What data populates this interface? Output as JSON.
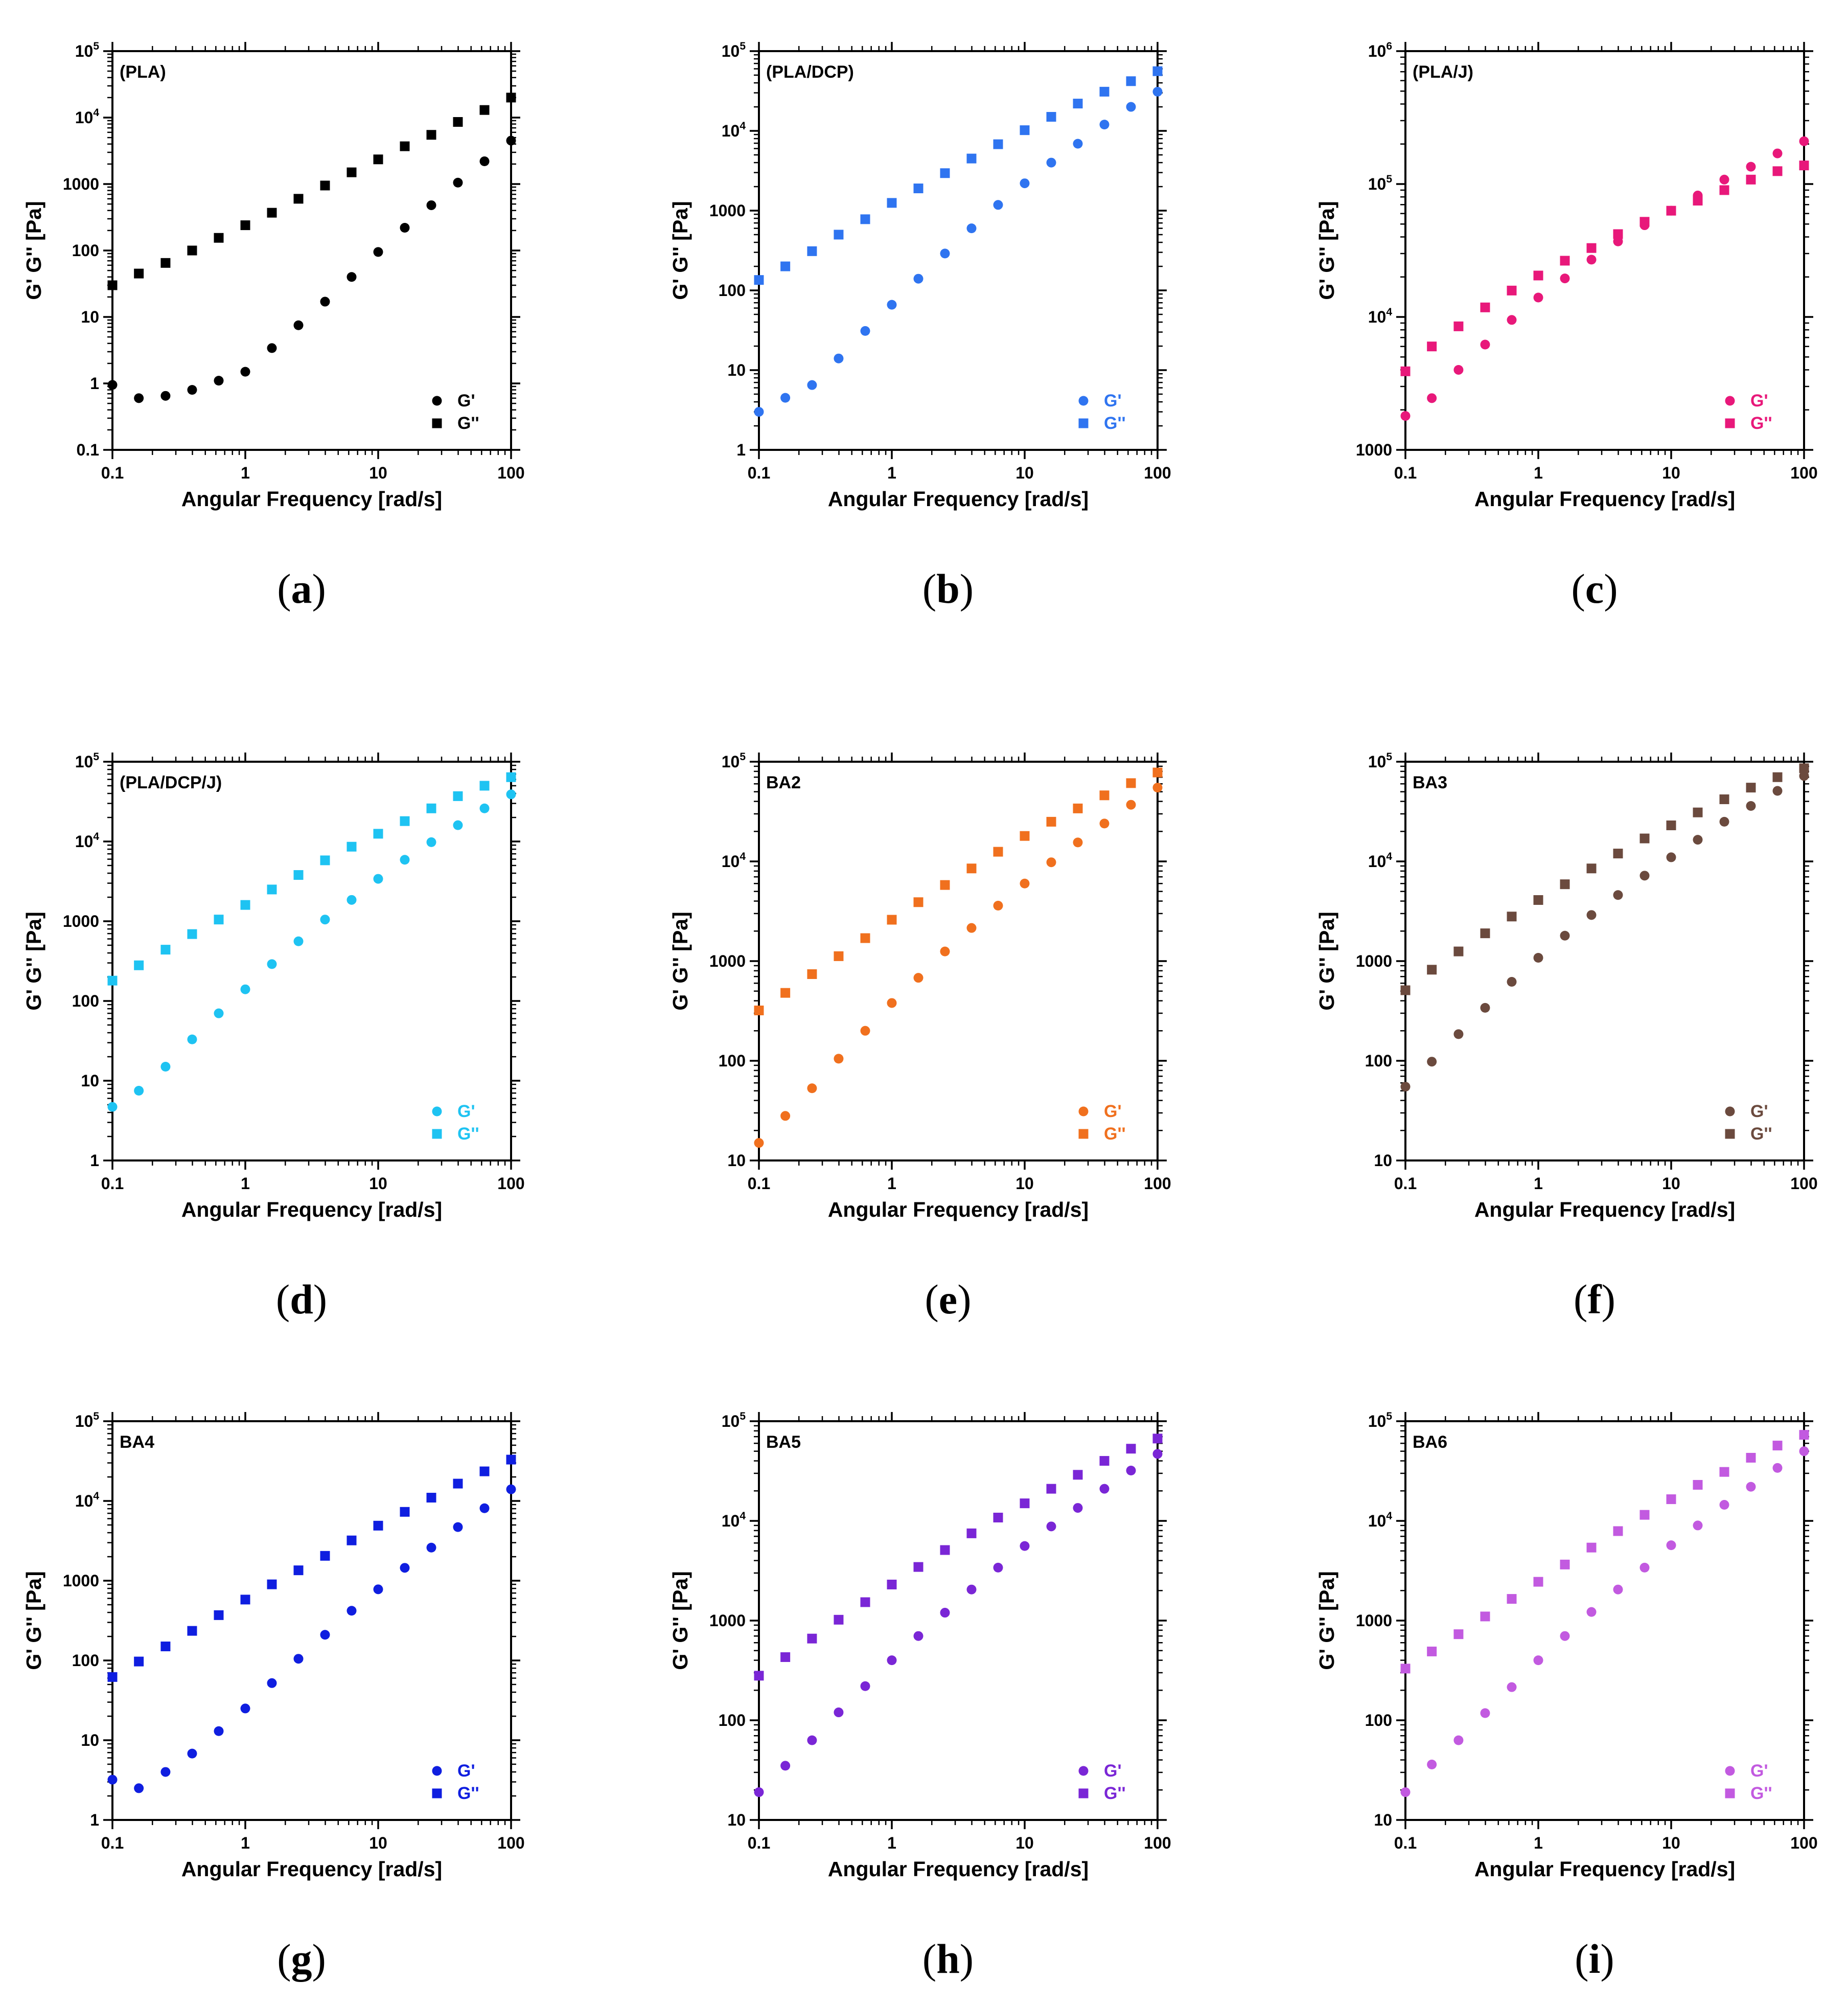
{
  "chart_data": [
    {
      "type": "scatter",
      "panel": "a",
      "caption": "a",
      "title": "(PLA)",
      "xlabel": "Angular Frequency [rad/s]",
      "ylabel": "G' G'' [Pa]",
      "xscale": "log",
      "yscale": "log",
      "xlim": [
        0.1,
        100
      ],
      "ylim": [
        0.1,
        100000
      ],
      "xticks": [
        "0.1",
        "1",
        "10",
        "100"
      ],
      "yticks": [
        "0.1",
        "1",
        "10",
        "100",
        "1000",
        "10^4",
        "10^5"
      ],
      "color": "#000000",
      "legend": [
        "G'",
        "G''"
      ],
      "legend_position": "bottom-right",
      "x": [
        0.1,
        0.158,
        0.251,
        0.398,
        0.631,
        1,
        1.585,
        2.512,
        3.981,
        6.31,
        10,
        15.85,
        25.12,
        39.81,
        63.1,
        100
      ],
      "series": [
        {
          "name": "G'",
          "marker": "circle",
          "values": [
            0.95,
            0.6,
            0.65,
            0.8,
            1.1,
            1.5,
            3.4,
            7.5,
            17,
            40,
            95,
            220,
            480,
            1050,
            2200,
            4500
          ]
        },
        {
          "name": "G''",
          "marker": "square",
          "values": [
            30,
            45,
            65,
            100,
            155,
            240,
            370,
            600,
            950,
            1500,
            2350,
            3700,
            5500,
            8600,
            13000,
            20000
          ]
        }
      ]
    },
    {
      "type": "scatter",
      "panel": "b",
      "caption": "b",
      "title": "(PLA/DCP)",
      "xlabel": "Angular Frequency [rad/s]",
      "ylabel": "G' G'' [Pa]",
      "xscale": "log",
      "yscale": "log",
      "xlim": [
        0.1,
        100
      ],
      "ylim": [
        1,
        100000
      ],
      "xticks": [
        "0.1",
        "1",
        "10",
        "100"
      ],
      "yticks": [
        "1",
        "10",
        "100",
        "1000",
        "10^4",
        "10^5"
      ],
      "color": "#2f74f0",
      "legend": [
        "G'",
        "G''"
      ],
      "legend_position": "bottom-right",
      "x": [
        0.1,
        0.158,
        0.251,
        0.398,
        0.631,
        1,
        1.585,
        2.512,
        3.981,
        6.31,
        10,
        15.85,
        25.12,
        39.81,
        63.1,
        100
      ],
      "series": [
        {
          "name": "G'",
          "marker": "circle",
          "values": [
            3,
            4.5,
            6.5,
            14,
            31,
            66,
            140,
            290,
            600,
            1180,
            2200,
            4000,
            6900,
            12000,
            20000,
            31000
          ]
        },
        {
          "name": "G''",
          "marker": "square",
          "values": [
            135,
            200,
            310,
            500,
            780,
            1250,
            1900,
            2950,
            4500,
            6800,
            10200,
            15000,
            22000,
            31000,
            42000,
            56000
          ]
        }
      ]
    },
    {
      "type": "scatter",
      "panel": "c",
      "caption": "c",
      "title": "(PLA/J)",
      "xlabel": "Angular Frequency [rad/s]",
      "ylabel": "G' G'' [Pa]",
      "xscale": "log",
      "yscale": "log",
      "xlim": [
        0.1,
        100
      ],
      "ylim": [
        1000,
        1000000
      ],
      "xticks": [
        "0.1",
        "1",
        "10",
        "100"
      ],
      "yticks": [
        "1000",
        "10^4",
        "10^5",
        "10^6"
      ],
      "color": "#e8187a",
      "legend": [
        "G'",
        "G''"
      ],
      "legend_position": "bottom-right",
      "x": [
        0.1,
        0.158,
        0.251,
        0.398,
        0.631,
        1,
        1.585,
        2.512,
        3.981,
        6.31,
        10,
        15.85,
        25.12,
        39.81,
        63.1,
        100
      ],
      "series": [
        {
          "name": "G'",
          "marker": "circle",
          "values": [
            1800,
            2450,
            4000,
            6200,
            9500,
            14000,
            19500,
            27000,
            37000,
            49000,
            63000,
            82000,
            108000,
            135000,
            170000,
            210000
          ]
        },
        {
          "name": "G''",
          "marker": "square",
          "values": [
            3900,
            6000,
            8500,
            11800,
            15800,
            20500,
            26500,
            33000,
            42000,
            52000,
            63000,
            75000,
            90000,
            108000,
            125000,
            138000
          ]
        }
      ]
    },
    {
      "type": "scatter",
      "panel": "d",
      "caption": "d",
      "title": "(PLA/DCP/J)",
      "xlabel": "Angular Frequency [rad/s]",
      "ylabel": "G' G'' [Pa]",
      "xscale": "log",
      "yscale": "log",
      "xlim": [
        0.1,
        100
      ],
      "ylim": [
        1,
        100000
      ],
      "xticks": [
        "0.1",
        "1",
        "10",
        "100"
      ],
      "yticks": [
        "1",
        "10",
        "100",
        "1000",
        "10^4",
        "10^5"
      ],
      "color": "#1ec3f2",
      "legend": [
        "G'",
        "G''"
      ],
      "legend_position": "bottom-right",
      "x": [
        0.1,
        0.158,
        0.251,
        0.398,
        0.631,
        1,
        1.585,
        2.512,
        3.981,
        6.31,
        10,
        15.85,
        25.12,
        39.81,
        63.1,
        100
      ],
      "series": [
        {
          "name": "G'",
          "marker": "circle",
          "values": [
            4.7,
            7.5,
            15,
            33,
            70,
            140,
            290,
            560,
            1050,
            1850,
            3400,
            5900,
            9800,
            16000,
            26000,
            39000
          ]
        },
        {
          "name": "G''",
          "marker": "square",
          "values": [
            180,
            280,
            440,
            690,
            1050,
            1600,
            2500,
            3800,
            5800,
            8600,
            12500,
            18000,
            26000,
            37000,
            50000,
            64000
          ]
        }
      ]
    },
    {
      "type": "scatter",
      "panel": "e",
      "caption": "e",
      "title": "BA2",
      "xlabel": "Angular Frequency [rad/s]",
      "ylabel": "G' G'' [Pa]",
      "xscale": "log",
      "yscale": "log",
      "xlim": [
        0.1,
        100
      ],
      "ylim": [
        10,
        100000
      ],
      "xticks": [
        "0.1",
        "1",
        "10",
        "100"
      ],
      "yticks": [
        "10",
        "100",
        "1000",
        "10^4",
        "10^5"
      ],
      "color": "#f0701e",
      "legend": [
        "G'",
        "G''"
      ],
      "legend_position": "bottom-right",
      "x": [
        0.1,
        0.158,
        0.251,
        0.398,
        0.631,
        1,
        1.585,
        2.512,
        3.981,
        6.31,
        10,
        15.85,
        25.12,
        39.81,
        63.1,
        100
      ],
      "series": [
        {
          "name": "G'",
          "marker": "circle",
          "values": [
            15,
            28,
            53,
            105,
            200,
            380,
            680,
            1250,
            2150,
            3600,
            6000,
            9800,
            15500,
            24000,
            37000,
            55000
          ]
        },
        {
          "name": "G''",
          "marker": "square",
          "values": [
            320,
            480,
            740,
            1120,
            1700,
            2600,
            3900,
            5800,
            8500,
            12500,
            18000,
            25000,
            34000,
            46000,
            61000,
            78000
          ]
        }
      ]
    },
    {
      "type": "scatter",
      "panel": "f",
      "caption": "f",
      "title": "BA3",
      "xlabel": "Angular Frequency [rad/s]",
      "ylabel": "G' G'' [Pa]",
      "xscale": "log",
      "yscale": "log",
      "xlim": [
        0.1,
        100
      ],
      "ylim": [
        10,
        100000
      ],
      "xticks": [
        "0.1",
        "1",
        "10",
        "100"
      ],
      "yticks": [
        "10",
        "100",
        "1000",
        "10^4",
        "10^5"
      ],
      "color": "#6b4a3e",
      "legend": [
        "G'",
        "G''"
      ],
      "legend_position": "bottom-right",
      "x": [
        0.1,
        0.158,
        0.251,
        0.398,
        0.631,
        1,
        1.585,
        2.512,
        3.981,
        6.31,
        10,
        15.85,
        25.12,
        39.81,
        63.1,
        100
      ],
      "series": [
        {
          "name": "G'",
          "marker": "circle",
          "values": [
            55,
            98,
            185,
            340,
            620,
            1080,
            1800,
            2900,
            4600,
            7200,
            11000,
            16500,
            25000,
            36000,
            51000,
            72000
          ]
        },
        {
          "name": "G''",
          "marker": "square",
          "values": [
            510,
            820,
            1250,
            1900,
            2800,
            4100,
            5900,
            8500,
            12000,
            17000,
            23000,
            31000,
            42000,
            55000,
            70000,
            86000
          ]
        }
      ]
    },
    {
      "type": "scatter",
      "panel": "g",
      "caption": "g",
      "title": "BA4",
      "xlabel": "Angular Frequency [rad/s]",
      "ylabel": "G' G'' [Pa]",
      "xscale": "log",
      "yscale": "log",
      "xlim": [
        0.1,
        100
      ],
      "ylim": [
        1,
        100000
      ],
      "xticks": [
        "0.1",
        "1",
        "10",
        "100"
      ],
      "yticks": [
        "1",
        "10",
        "100",
        "1000",
        "10^4",
        "10^5"
      ],
      "color": "#0f1ee0",
      "legend": [
        "G'",
        "G''"
      ],
      "legend_position": "bottom-right",
      "x": [
        0.1,
        0.158,
        0.251,
        0.398,
        0.631,
        1,
        1.585,
        2.512,
        3.981,
        6.31,
        10,
        15.85,
        25.12,
        39.81,
        63.1,
        100
      ],
      "series": [
        {
          "name": "G'",
          "marker": "circle",
          "values": [
            3.2,
            2.5,
            4,
            6.8,
            13,
            25,
            52,
            105,
            210,
            420,
            780,
            1450,
            2600,
            4700,
            8100,
            14000
          ]
        },
        {
          "name": "G''",
          "marker": "square",
          "values": [
            62,
            97,
            150,
            235,
            370,
            580,
            900,
            1350,
            2050,
            3200,
            4900,
            7300,
            11000,
            16500,
            23500,
            33000
          ]
        }
      ]
    },
    {
      "type": "scatter",
      "panel": "h",
      "caption": "h",
      "title": "BA5",
      "xlabel": "Angular Frequency [rad/s]",
      "ylabel": "G' G'' [Pa]",
      "xscale": "log",
      "yscale": "log",
      "xlim": [
        0.1,
        100
      ],
      "ylim": [
        10,
        100000
      ],
      "xticks": [
        "0.1",
        "1",
        "10",
        "100"
      ],
      "yticks": [
        "10",
        "100",
        "1000",
        "10^4",
        "10^5"
      ],
      "color": "#7a26d6",
      "legend": [
        "G'",
        "G''"
      ],
      "legend_position": "bottom-right",
      "x": [
        0.1,
        0.158,
        0.251,
        0.398,
        0.631,
        1,
        1.585,
        2.512,
        3.981,
        6.31,
        10,
        15.85,
        25.12,
        39.81,
        63.1,
        100
      ],
      "series": [
        {
          "name": "G'",
          "marker": "circle",
          "values": [
            19,
            35,
            63,
            120,
            220,
            400,
            700,
            1200,
            2050,
            3400,
            5600,
            8800,
            13500,
            21000,
            32000,
            47000
          ]
        },
        {
          "name": "G''",
          "marker": "square",
          "values": [
            280,
            430,
            660,
            1020,
            1530,
            2300,
            3450,
            5100,
            7500,
            10800,
            15000,
            21000,
            29000,
            40000,
            53000,
            67000
          ]
        }
      ]
    },
    {
      "type": "scatter",
      "panel": "i",
      "caption": "i",
      "title": "BA6",
      "xlabel": "Angular Frequency [rad/s]",
      "ylabel": "G' G'' [Pa]",
      "xscale": "log",
      "yscale": "log",
      "xlim": [
        0.1,
        100
      ],
      "ylim": [
        10,
        100000
      ],
      "xticks": [
        "0.1",
        "1",
        "10",
        "100"
      ],
      "yticks": [
        "10",
        "100",
        "1000",
        "10^4",
        "10^5"
      ],
      "color": "#c25ae0",
      "legend": [
        "G'",
        "G''"
      ],
      "legend_position": "bottom-right",
      "x": [
        0.1,
        0.158,
        0.251,
        0.398,
        0.631,
        1,
        1.585,
        2.512,
        3.981,
        6.31,
        10,
        15.85,
        25.12,
        39.81,
        63.1,
        100
      ],
      "series": [
        {
          "name": "G'",
          "marker": "circle",
          "values": [
            19,
            36,
            63,
            118,
            215,
            400,
            700,
            1220,
            2050,
            3400,
            5700,
            9000,
            14500,
            22000,
            34000,
            50000
          ]
        },
        {
          "name": "G''",
          "marker": "square",
          "values": [
            330,
            490,
            730,
            1100,
            1650,
            2450,
            3650,
            5400,
            7900,
            11500,
            16500,
            23000,
            31000,
            43000,
            57000,
            73000
          ]
        }
      ]
    }
  ]
}
